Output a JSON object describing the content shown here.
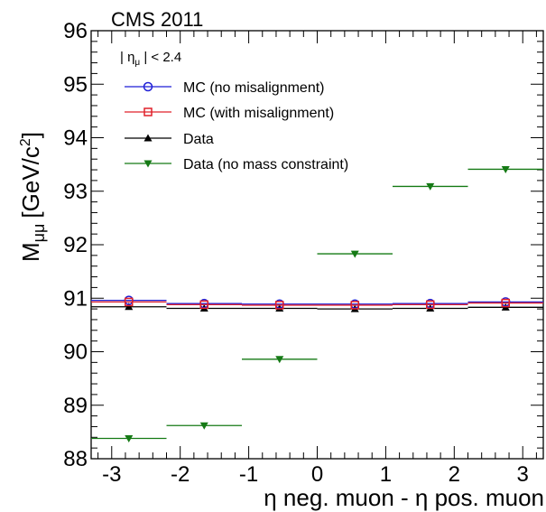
{
  "header": {
    "experiment": "CMS 2011"
  },
  "cut_label": {
    "prefix": "| η",
    "sub": "μ",
    "suffix": " | < 2.4"
  },
  "axis_labels": {
    "x_text": "η neg. muon - η pos. muon",
    "y_main": "M",
    "y_sub": "μμ",
    "y_unit": "[GeV/c",
    "y_sup": "2",
    "y_close": "]"
  },
  "chart_data": {
    "type": "scatter",
    "title": "CMS 2011",
    "xlabel": "η neg. muon - η pos. muon",
    "ylabel": "M_μμ [GeV/c²]",
    "xlim": [
      -3.3,
      3.3
    ],
    "ylim": [
      88,
      96
    ],
    "xticks": [
      -3,
      -2,
      -1,
      0,
      1,
      2,
      3
    ],
    "yticks": [
      88,
      89,
      90,
      91,
      92,
      93,
      94,
      95,
      96
    ],
    "bin_edges": [
      -3.3,
      -2.2,
      -1.1,
      0.0,
      1.1,
      2.2,
      3.3
    ],
    "bin_centers": [
      -2.75,
      -1.65,
      -0.55,
      0.55,
      1.65,
      2.75
    ],
    "legend_position": "top-left",
    "series": [
      {
        "name": "MC (no misalignment)",
        "marker": "circle",
        "color": "#1f1fd6",
        "values": [
          90.96,
          90.9,
          90.89,
          90.89,
          90.9,
          90.93
        ]
      },
      {
        "name": "MC (with misalignment)",
        "marker": "square",
        "color": "#e0202a",
        "values": [
          90.93,
          90.88,
          90.87,
          90.87,
          90.88,
          90.91
        ]
      },
      {
        "name": "Data",
        "marker": "triangle-up",
        "color": "#000000",
        "values": [
          90.84,
          90.81,
          90.81,
          90.8,
          90.81,
          90.83
        ]
      },
      {
        "name": "Data (no mass constraint)",
        "marker": "triangle-down",
        "color": "#157a15",
        "values": [
          88.38,
          88.62,
          89.86,
          91.83,
          93.09,
          93.41
        ]
      }
    ]
  }
}
